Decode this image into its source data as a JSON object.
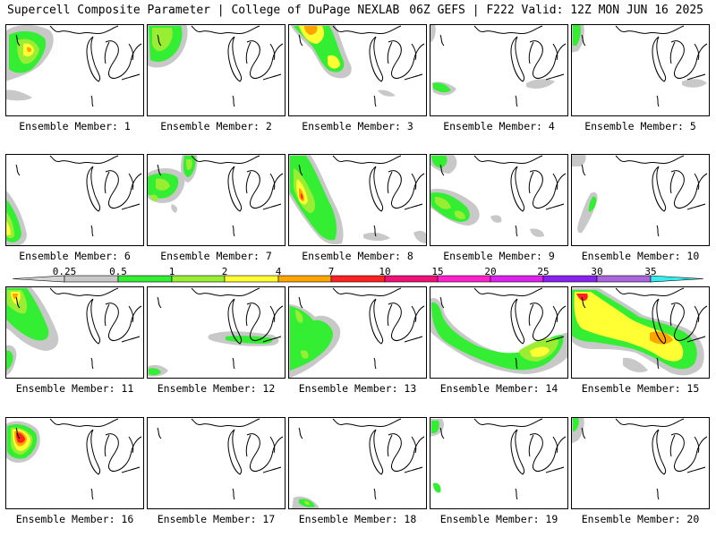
{
  "header": {
    "title": "Supercell Composite Parameter | College of DuPage NEXLAB",
    "run_info": "06Z GEFS | F222 Valid: 12Z MON JUN 16 2025"
  },
  "colorbar": {
    "labels": [
      "0.25",
      "0.5",
      "1",
      "2",
      "4",
      "7",
      "10",
      "15",
      "20",
      "25",
      "30",
      "35"
    ],
    "colors": [
      "#d4d4d4",
      "#c8c8c8",
      "#33ee33",
      "#99ee33",
      "#ffff33",
      "#ffa500",
      "#ff2222",
      "#ee1177",
      "#ff22cc",
      "#dd22ee",
      "#8822ee",
      "#aa66dd",
      "#33eeee"
    ]
  },
  "members": [
    {
      "label": "Ensemble Member: 1"
    },
    {
      "label": "Ensemble Member: 2"
    },
    {
      "label": "Ensemble Member: 3"
    },
    {
      "label": "Ensemble Member: 4"
    },
    {
      "label": "Ensemble Member: 5"
    },
    {
      "label": "Ensemble Member: 6"
    },
    {
      "label": "Ensemble Member: 7"
    },
    {
      "label": "Ensemble Member: 8"
    },
    {
      "label": "Ensemble Member: 9"
    },
    {
      "label": "Ensemble Member: 10"
    },
    {
      "label": "Ensemble Member: 11"
    },
    {
      "label": "Ensemble Member: 12"
    },
    {
      "label": "Ensemble Member: 13"
    },
    {
      "label": "Ensemble Member: 14"
    },
    {
      "label": "Ensemble Member: 15"
    },
    {
      "label": "Ensemble Member: 16"
    },
    {
      "label": "Ensemble Member: 17"
    },
    {
      "label": "Ensemble Member: 18"
    },
    {
      "label": "Ensemble Member: 19"
    },
    {
      "label": "Ensemble Member: 20"
    }
  ]
}
